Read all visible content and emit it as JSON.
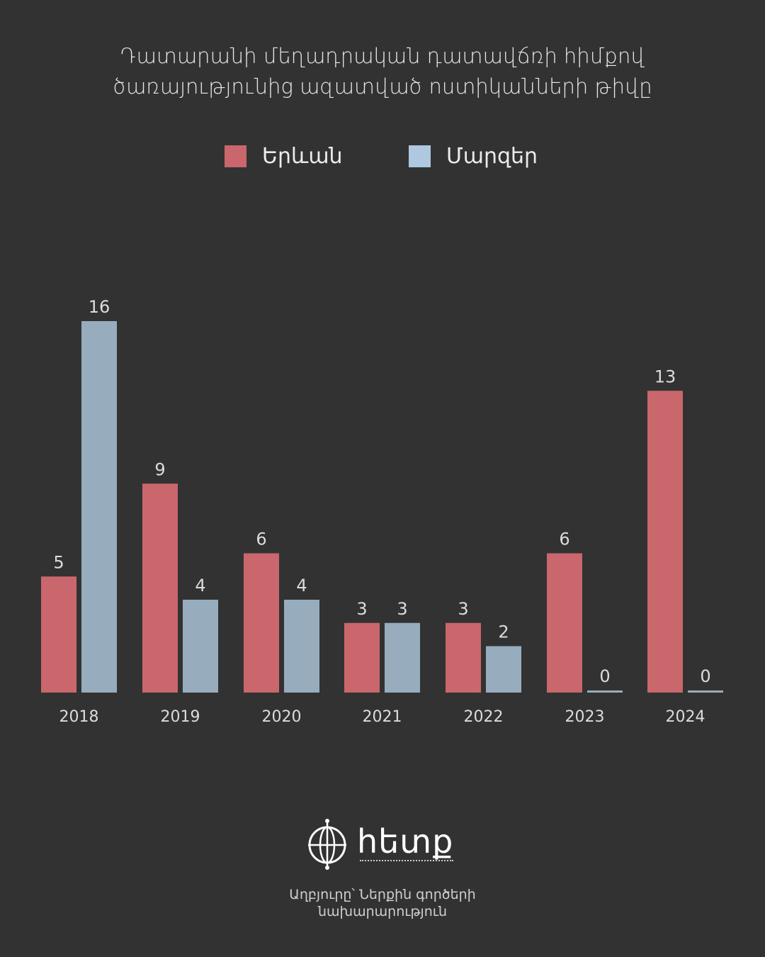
{
  "colors": {
    "background": "#323232",
    "yerevan": "#c9676c",
    "marzer_bar": "#97adbd",
    "marzer_legend": "#adc8df",
    "text": "#e6e6e6"
  },
  "chart_data": {
    "type": "bar",
    "title_lines": [
      "Դատարանի մեղադրական դատավճռի հիմքով",
      "ծառայությունից ազատված ոստիկանների թիվը"
    ],
    "categories": [
      "2018",
      "2019",
      "2020",
      "2021",
      "2022",
      "2023",
      "2024"
    ],
    "series": [
      {
        "name": "Երևան",
        "values": [
          5,
          9,
          6,
          3,
          3,
          6,
          13
        ]
      },
      {
        "name": "Մարզեր",
        "values": [
          16,
          4,
          4,
          3,
          2,
          0,
          0
        ]
      }
    ],
    "ylim": [
      0,
      16
    ],
    "grid": false,
    "legend_position": "top-center",
    "data_labels": true
  },
  "logo": {
    "name": "հետք",
    "icon": "compass-globe-icon"
  },
  "source_lines": [
    "Աղբյուրը՝ Ներքին գործերի",
    "նախարարություն"
  ]
}
